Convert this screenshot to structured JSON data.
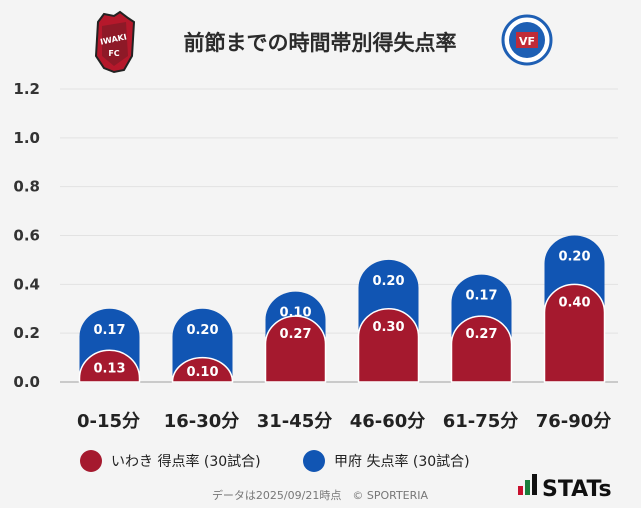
{
  "chart_data": {
    "type": "bar",
    "stacked": true,
    "title": "前節までの時間帯別得失点率",
    "categories": [
      "0-15分",
      "16-30分",
      "31-45分",
      "46-60分",
      "61-75分",
      "76-90分"
    ],
    "series": [
      {
        "name": "いわき 得点率 (30試合)",
        "color": "#a5192e",
        "values": [
          0.13,
          0.1,
          0.27,
          0.3,
          0.27,
          0.4
        ],
        "labels": [
          "0.13",
          "0.10",
          "0.27",
          "0.30",
          "0.27",
          "0.40"
        ]
      },
      {
        "name": "甲府 失点率 (30試合)",
        "color": "#1155b3",
        "values": [
          0.17,
          0.2,
          0.1,
          0.2,
          0.17,
          0.2
        ],
        "labels": [
          "0.17",
          "0.20",
          "0.10",
          "0.20",
          "0.17",
          "0.20"
        ]
      }
    ],
    "y_ticks": [
      "0.0",
      "0.2",
      "0.4",
      "0.6",
      "0.8",
      "1.0",
      "1.2"
    ],
    "ylim": [
      0,
      1.2
    ],
    "grid": true,
    "legend": "bottom"
  },
  "logos": {
    "left": {
      "name": "IWAKI FC",
      "text_top": "IWAKI",
      "text_bottom": "FC",
      "color": "#b5182b"
    },
    "right": {
      "name": "VENTFORET KOFU",
      "color": "#1e5fb4"
    }
  },
  "footer": "データは2025/09/21時点　© SPORTERIA",
  "brand": "STATs"
}
